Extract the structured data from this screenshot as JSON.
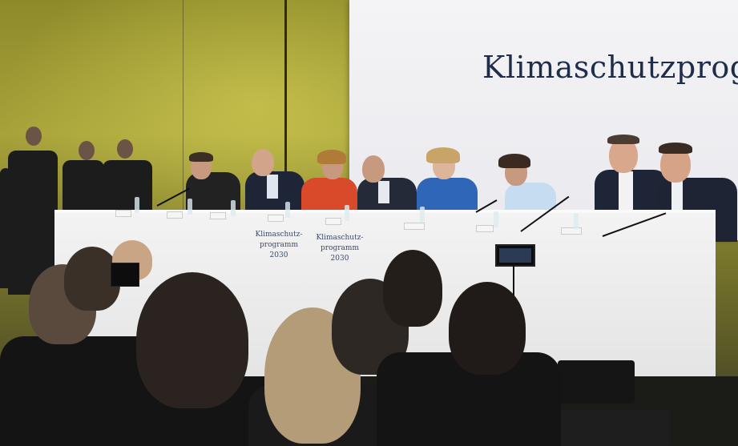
{
  "banner": {
    "title": "Klimaschutzprogramm"
  },
  "table_labels": [
    {
      "text": "Klimaschutz-\nprogramm 2030"
    },
    {
      "text": "Klimaschutz-\nprogramm 2030"
    }
  ],
  "colors": {
    "wall": "#a8a23a",
    "banner": "#f0f0f3",
    "banner_text": "#1f2d4a",
    "table": "#ececec"
  }
}
